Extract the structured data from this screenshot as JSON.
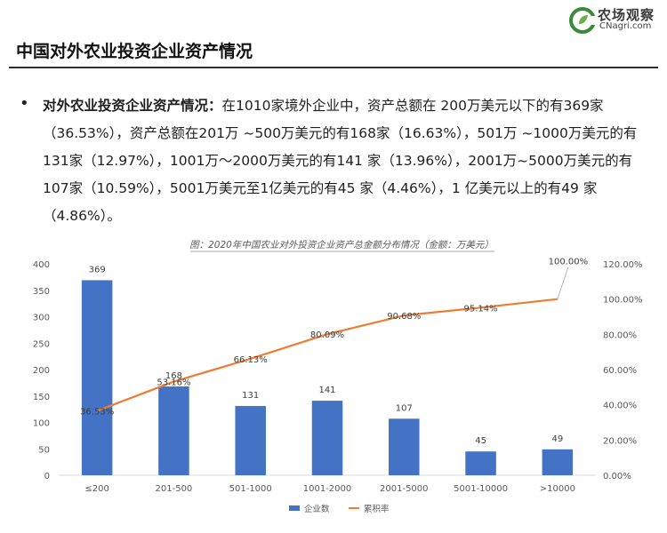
{
  "logo": {
    "cn": "农场观察",
    "en": "CNagri.com"
  },
  "page_title": "中国对外农业投资企业资产情况",
  "bullet": {
    "label": "对外农业投资企业资产情况：",
    "text": "在1010家境外企业中，资产总额在 200万美元以下的有369家（36.53%），资产总额在201万 ~500万美元的有168家（16.63%），501万 ~1000万美元的有131家（12.97%），1001万～2000万美元的有141 家（13.96%），2001万~5000万美元的有107家（10.59%），5001万美元至1亿美元的有45 家（4.46%），1 亿美元以上的有49 家（4.86%）。"
  },
  "chart_data": {
    "type": "bar+line",
    "title": "图：2020年中国农业对外投资企业资产总金额分布情况（金额：万美元）",
    "categories": [
      "≤200",
      "201-500",
      "501-1000",
      "1001-2000",
      "2001-5000",
      "5001-10000",
      ">10000"
    ],
    "series": [
      {
        "name": "企业数",
        "type": "bar",
        "axis": "left",
        "color": "#4472C4",
        "values": [
          369,
          168,
          131,
          141,
          107,
          45,
          49
        ]
      },
      {
        "name": "累积率",
        "type": "line",
        "axis": "right",
        "color": "#ED7D31",
        "values": [
          36.53,
          53.16,
          66.13,
          80.09,
          90.68,
          95.14,
          100.0
        ]
      }
    ],
    "y_left": {
      "min": 0,
      "max": 400,
      "ticks": [
        0,
        50,
        100,
        150,
        200,
        250,
        300,
        350,
        400
      ]
    },
    "y_right": {
      "min": 0,
      "max": 120,
      "ticks": [
        0,
        20,
        40,
        60,
        80,
        100,
        120
      ],
      "tick_labels": [
        "0.00%",
        "20.00%",
        "40.00%",
        "60.00%",
        "80.00%",
        "100.00%",
        "120.00%"
      ]
    },
    "bar_labels": [
      "369",
      "168",
      "131",
      "141",
      "107",
      "45",
      "49"
    ],
    "line_labels": [
      "36.53%",
      "53.16%",
      "66.13%",
      "80.09%",
      "90.68%",
      "95.14%",
      "100.00%"
    ],
    "legend": [
      "企业数",
      "累积率"
    ],
    "legend_position": "bottom"
  }
}
